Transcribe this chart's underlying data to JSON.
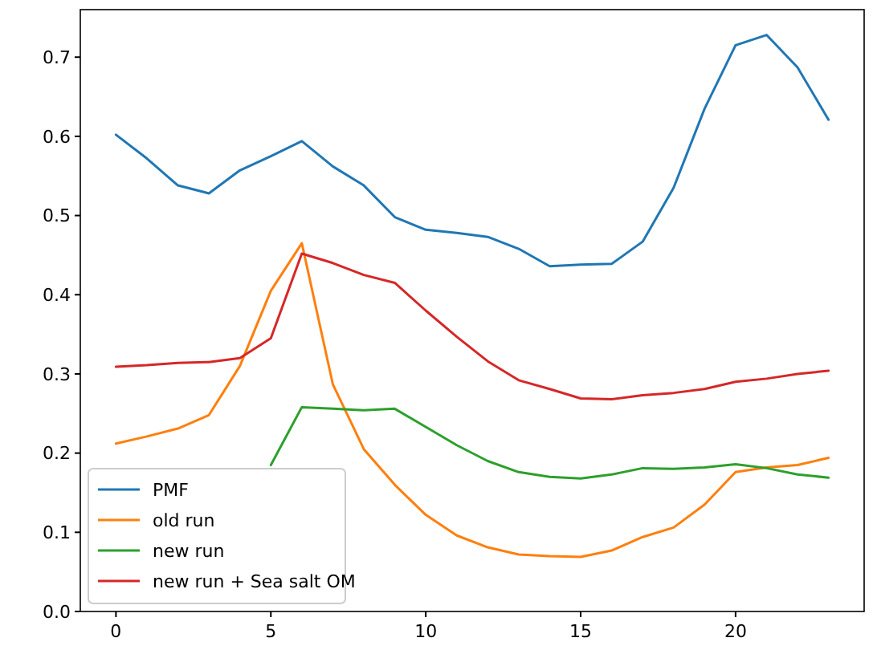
{
  "chart_data": {
    "type": "line",
    "x": [
      0,
      1,
      2,
      3,
      4,
      5,
      6,
      7,
      8,
      9,
      10,
      11,
      12,
      13,
      14,
      15,
      16,
      17,
      18,
      19,
      20,
      21,
      22,
      23
    ],
    "xlim": [
      -1.15,
      24.15
    ],
    "xticks": [
      0,
      5,
      10,
      15,
      20
    ],
    "ylim": [
      0,
      0.76
    ],
    "yticks": [
      {
        "value": 0,
        "label": "0.0"
      },
      0.1,
      0.2,
      0.3,
      0.4,
      0.5,
      0.6,
      0.7
    ],
    "legend": "bottom left",
    "grid": false,
    "series": [
      {
        "name": "PMF",
        "color": "#1f77b4",
        "values": [
          0.602,
          0.572,
          0.538,
          0.528,
          0.557,
          0.575,
          0.594,
          0.562,
          0.538,
          0.498,
          0.482,
          0.478,
          0.473,
          0.458,
          0.436,
          0.438,
          0.439,
          0.467,
          0.535,
          0.635,
          0.715,
          0.728,
          0.687,
          0.621
        ]
      },
      {
        "name": "old run",
        "color": "#ff7f0e",
        "values": [
          0.212,
          0.221,
          0.231,
          0.248,
          0.31,
          0.405,
          0.465,
          0.287,
          0.205,
          0.16,
          0.122,
          0.096,
          0.081,
          0.072,
          0.07,
          0.069,
          0.077,
          0.094,
          0.106,
          0.135,
          0.176,
          0.182,
          0.185,
          0.194
        ]
      },
      {
        "name": "new run",
        "color": "#2ca02c",
        "values": [
          null,
          null,
          null,
          null,
          null,
          0.185,
          0.258,
          0.256,
          0.254,
          0.256,
          0.233,
          0.21,
          0.19,
          0.176,
          0.17,
          0.168,
          0.173,
          0.181,
          0.18,
          0.182,
          0.186,
          0.181,
          0.173,
          0.169
        ]
      },
      {
        "name": "new run + Sea salt OM",
        "color": "#d62728",
        "values": [
          0.309,
          0.311,
          0.314,
          0.315,
          0.32,
          0.345,
          0.452,
          0.44,
          0.425,
          0.415,
          0.38,
          0.347,
          0.316,
          0.292,
          0.281,
          0.269,
          0.268,
          0.273,
          0.276,
          0.281,
          0.29,
          0.294,
          0.3,
          0.304
        ]
      }
    ]
  }
}
